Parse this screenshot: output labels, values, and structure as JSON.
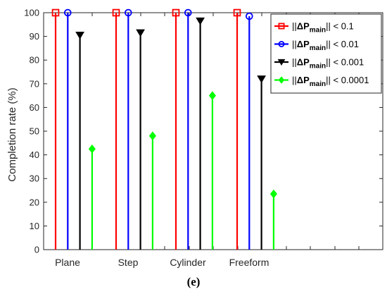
{
  "chart_data": {
    "type": "stem",
    "categories": [
      "Plane",
      "Step",
      "Cylinder",
      "Freeform"
    ],
    "ylabel": "Completion rate (%)",
    "xlabel": "",
    "ylim": [
      0,
      100
    ],
    "yticks": [
      0,
      10,
      20,
      30,
      40,
      50,
      60,
      70,
      80,
      90,
      100
    ],
    "grid": false,
    "legend_position": "top-right",
    "series": [
      {
        "legend": {
          "pre": "||",
          "bold": "ΔP",
          "sub": "main",
          "post": "|| < 0.1"
        },
        "color": "#ff0000",
        "marker": "square",
        "values": [
          100,
          100,
          100,
          100
        ]
      },
      {
        "legend": {
          "pre": "||",
          "bold": "ΔP",
          "sub": "main",
          "post": "|| < 0.01"
        },
        "color": "#0000ff",
        "marker": "circle",
        "values": [
          100,
          100,
          100,
          98.5
        ]
      },
      {
        "legend": {
          "pre": "||",
          "bold": "ΔP",
          "sub": "main",
          "post": "|| < 0.001"
        },
        "color": "#000000",
        "marker": "triangle-down",
        "values": [
          90.5,
          91.5,
          96.5,
          72
        ]
      },
      {
        "legend": {
          "pre": "||",
          "bold": "ΔP",
          "sub": "main",
          "post": "|| < 0.0001"
        },
        "color": "#00ff00",
        "marker": "diamond",
        "values": [
          42.5,
          48,
          65,
          23.5
        ]
      }
    ],
    "panel_label": "(e)"
  }
}
